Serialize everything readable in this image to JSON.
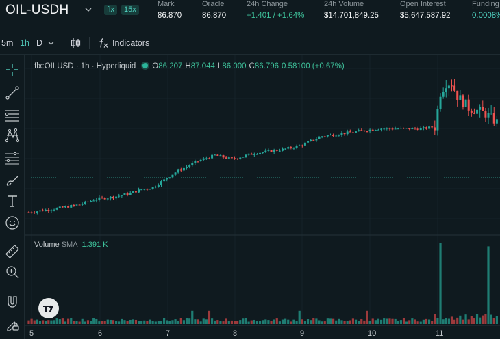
{
  "header": {
    "pair": "OIL-USDH",
    "tags": [
      "flx",
      "15x"
    ],
    "stats": [
      {
        "label": "Mark",
        "value": "86.870",
        "tone": ""
      },
      {
        "label": "Oracle",
        "value": "86.870",
        "tone": ""
      },
      {
        "label": "24h Change",
        "value": "+1.401 / +1.64%",
        "tone": "pos"
      },
      {
        "label": "24h Volume",
        "value": "$14,701,849.25",
        "tone": ""
      },
      {
        "label": "Open Interest",
        "value": "$5,647,587.92",
        "tone": ""
      },
      {
        "label": "Funding",
        "value": "0.0008%",
        "tone": "teal"
      }
    ]
  },
  "toolbar": {
    "timeframes": [
      "5m",
      "1h",
      "D"
    ],
    "active_timeframe": "1h",
    "indicators_label": "Indicators"
  },
  "sidebar": {
    "tools": [
      "crosshair-icon",
      "trend-line-icon",
      "horizontal-lines-icon",
      "pattern-icon",
      "fib-icon",
      "brush-icon",
      "text-icon",
      "emoji-icon",
      "ruler-icon",
      "zoom-icon",
      "magnet-icon",
      "lock-draw-icon"
    ]
  },
  "chart": {
    "symbol_line": "flx:OILUSD · 1h · Hyperliquid",
    "ohlc": {
      "o_label": "O",
      "o": "86.207",
      "h_label": "H",
      "h": "87.044",
      "l_label": "L",
      "l": "86.000",
      "c_label": "C",
      "c": "86.796",
      "change": "0.58100 (+0.67%)"
    },
    "volume_label": "Volume",
    "sma_label": "SMA",
    "sma_value": "1.391 K",
    "colors": {
      "up": "#26a69a",
      "down": "#ef5350",
      "bg": "#0f1a1f"
    }
  },
  "chart_data": {
    "type": "candlestick",
    "x_tick_labels": [
      "5",
      "6",
      "7",
      "8",
      "9",
      "10",
      "11"
    ],
    "price_line": 86.8,
    "candles": [],
    "volume": []
  }
}
